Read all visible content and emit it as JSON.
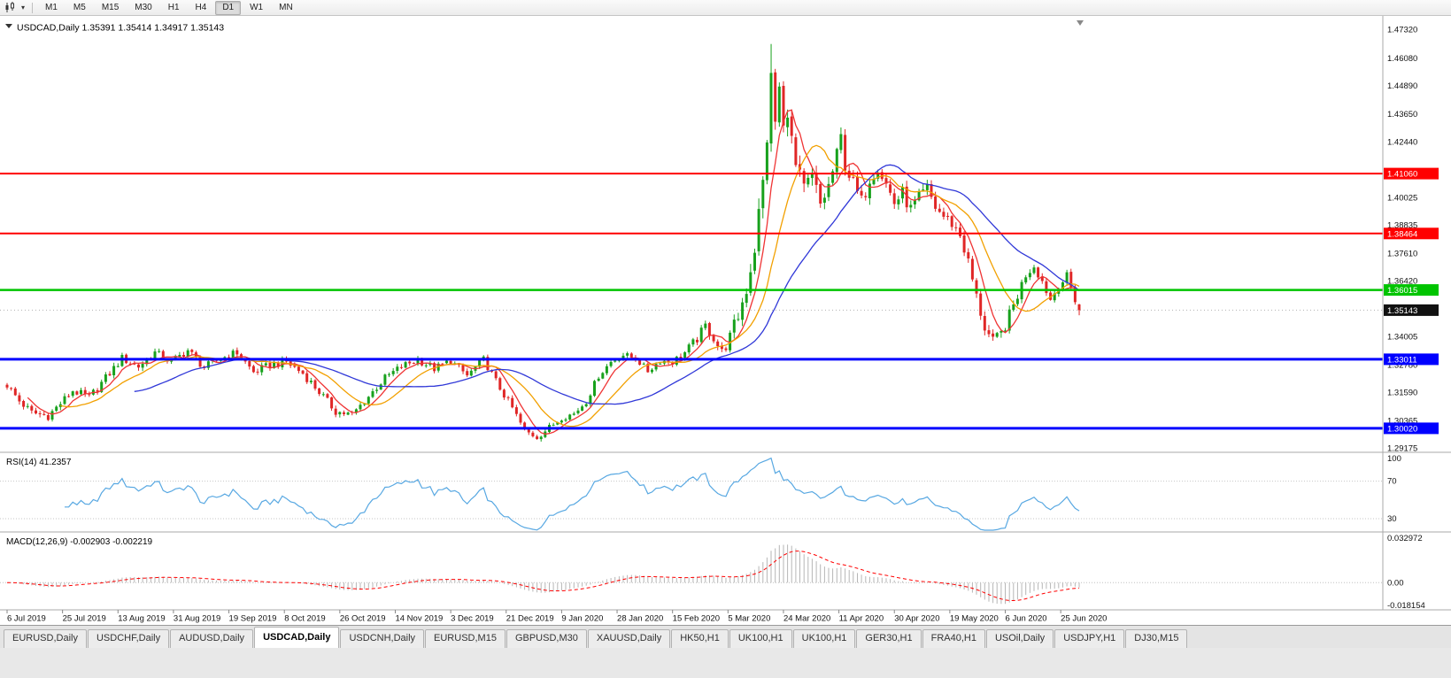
{
  "toolbar": {
    "chart_type_icon": "candlestick-chart",
    "timeframes": [
      "M1",
      "M5",
      "M15",
      "M30",
      "H1",
      "H4",
      "D1",
      "W1",
      "MN"
    ],
    "active_timeframe": "D1"
  },
  "chart": {
    "symbol": "USDCAD",
    "period": "Daily",
    "title_line": "USDCAD,Daily 1.35391 1.35414 1.34917 1.35143",
    "open": "1.35391",
    "high": "1.35414",
    "low": "1.34917",
    "close": "1.35143"
  },
  "price_axis": {
    "ticks": [
      "1.47320",
      "1.46080",
      "1.44890",
      "1.43650",
      "1.42440",
      "1.40025",
      "1.38835",
      "1.37610",
      "1.36420",
      "1.34005",
      "1.32780",
      "1.31590",
      "1.30365",
      "1.29175"
    ]
  },
  "hlines": [
    {
      "price": 1.4106,
      "label": "1.41060",
      "color": "#ff0000",
      "width": 2
    },
    {
      "price": 1.38464,
      "label": "1.38464",
      "color": "#ff0000",
      "width": 2
    },
    {
      "price": 1.36015,
      "label": "1.36015",
      "color": "#00c400",
      "width": 2.5
    },
    {
      "price": 1.33011,
      "label": "1.33011",
      "color": "#0000ff",
      "width": 3
    },
    {
      "price": 1.3002,
      "label": "1.30020",
      "color": "#0000ff",
      "width": 3
    }
  ],
  "current_price": {
    "value": 1.35143,
    "label": "1.35143",
    "badge_color": "#111111"
  },
  "time_axis": [
    "6 Jul 2019",
    "25 Jul 2019",
    "13 Aug 2019",
    "31 Aug 2019",
    "19 Sep 2019",
    "8 Oct 2019",
    "26 Oct 2019",
    "14 Nov 2019",
    "3 Dec 2019",
    "21 Dec 2019",
    "9 Jan 2020",
    "28 Jan 2020",
    "15 Feb 2020",
    "5 Mar 2020",
    "24 Mar 2020",
    "11 Apr 2020",
    "30 Apr 2020",
    "19 May 2020",
    "6 Jun 2020",
    "25 Jun 2020"
  ],
  "rsi": {
    "title": "RSI(14) 41.2357",
    "period": 14,
    "current": 41.2357,
    "axis_labels": [
      "100",
      "70",
      "30"
    ],
    "levels": [
      70,
      30
    ],
    "line_color": "#58a8e2"
  },
  "macd": {
    "title": "MACD(12,26,9) -0.002903 -0.002219",
    "fast": 12,
    "slow": 26,
    "signal": 9,
    "macd_value": -0.002903,
    "signal_value": -0.002219,
    "axis_labels": [
      "0.032972",
      "0.00",
      "-0.018154"
    ],
    "axis_max": 0.032972,
    "axis_min": -0.018154,
    "histogram_color": "#b6b6b6",
    "signal_color": "#ff0000"
  },
  "tabs": {
    "items": [
      "EURUSD,Daily",
      "USDCHF,Daily",
      "AUDUSD,Daily",
      "USDCAD,Daily",
      "USDCNH,Daily",
      "EURUSD,M15",
      "GBPUSD,M30",
      "XAUUSD,Daily",
      "HK50,H1",
      "UK100,H1",
      "UK100,H1",
      "GER30,H1",
      "FRA40,H1",
      "USOil,Daily",
      "USDJPY,H1",
      "DJ30,M15"
    ],
    "active_index": 3
  },
  "colors": {
    "candle_up": "#17a11c",
    "candle_down": "#e02626",
    "axis_text": "#111111",
    "panel_border": "#a8a8a8",
    "current_price_line": "#b0b0b0",
    "grid_levels": "#c6c6c6"
  },
  "chart_data": {
    "type": "candlestick",
    "symbol": "USDCAD",
    "timeframe": "D1",
    "visible_range": {
      "price_min": 1.2917,
      "price_max": 1.4774,
      "date_start": "6 Jul 2019",
      "date_end": "1 Jul 2020"
    },
    "candle_count": 262,
    "close_waypoints": [
      [
        0,
        1.319
      ],
      [
        3,
        1.312
      ],
      [
        6,
        1.307
      ],
      [
        10,
        1.3055
      ],
      [
        13,
        1.311
      ],
      [
        16,
        1.3165
      ],
      [
        20,
        1.3135
      ],
      [
        24,
        1.322
      ],
      [
        28,
        1.3305
      ],
      [
        32,
        1.327
      ],
      [
        36,
        1.333
      ],
      [
        40,
        1.329
      ],
      [
        44,
        1.334
      ],
      [
        48,
        1.3265
      ],
      [
        52,
        1.3305
      ],
      [
        56,
        1.333
      ],
      [
        60,
        1.3245
      ],
      [
        64,
        1.3275
      ],
      [
        68,
        1.329
      ],
      [
        72,
        1.324
      ],
      [
        76,
        1.316
      ],
      [
        80,
        1.3075
      ],
      [
        84,
        1.306
      ],
      [
        88,
        1.314
      ],
      [
        92,
        1.322
      ],
      [
        96,
        1.327
      ],
      [
        100,
        1.33
      ],
      [
        104,
        1.326
      ],
      [
        108,
        1.3295
      ],
      [
        112,
        1.323
      ],
      [
        116,
        1.33
      ],
      [
        120,
        1.3175
      ],
      [
        123,
        1.309
      ],
      [
        126,
        1.299
      ],
      [
        129,
        1.2965
      ],
      [
        132,
        1.3005
      ],
      [
        135,
        1.305
      ],
      [
        138,
        1.3065
      ],
      [
        141,
        1.312
      ],
      [
        144,
        1.323
      ],
      [
        147,
        1.329
      ],
      [
        150,
        1.332
      ],
      [
        153,
        1.3305
      ],
      [
        156,
        1.325
      ],
      [
        159,
        1.3295
      ],
      [
        162,
        1.329
      ],
      [
        165,
        1.333
      ],
      [
        168,
        1.339
      ],
      [
        170,
        1.3445
      ],
      [
        172,
        1.3395
      ],
      [
        174,
        1.333
      ],
      [
        176,
        1.3395
      ],
      [
        178,
        1.349
      ],
      [
        180,
        1.361
      ],
      [
        182,
        1.379
      ],
      [
        184,
        1.406
      ],
      [
        185,
        1.427
      ],
      [
        186,
        1.451
      ],
      [
        187,
        1.433
      ],
      [
        188,
        1.447
      ],
      [
        189,
        1.429
      ],
      [
        190,
        1.44
      ],
      [
        191,
        1.424
      ],
      [
        192,
        1.413
      ],
      [
        194,
        1.403
      ],
      [
        196,
        1.409
      ],
      [
        198,
        1.397
      ],
      [
        200,
        1.405
      ],
      [
        202,
        1.418
      ],
      [
        203,
        1.426
      ],
      [
        204,
        1.415
      ],
      [
        206,
        1.406
      ],
      [
        208,
        1.398
      ],
      [
        210,
        1.409
      ],
      [
        212,
        1.414
      ],
      [
        214,
        1.406
      ],
      [
        216,
        1.398
      ],
      [
        218,
        1.402
      ],
      [
        220,
        1.395
      ],
      [
        222,
        1.4
      ],
      [
        224,
        1.404
      ],
      [
        226,
        1.396
      ],
      [
        228,
        1.392
      ],
      [
        230,
        1.389
      ],
      [
        232,
        1.384
      ],
      [
        234,
        1.372
      ],
      [
        236,
        1.357
      ],
      [
        238,
        1.344
      ],
      [
        240,
        1.337
      ],
      [
        242,
        1.341
      ],
      [
        244,
        1.349
      ],
      [
        246,
        1.358
      ],
      [
        248,
        1.367
      ],
      [
        250,
        1.371
      ],
      [
        252,
        1.364
      ],
      [
        254,
        1.356
      ],
      [
        256,
        1.362
      ],
      [
        258,
        1.366
      ],
      [
        260,
        1.356
      ],
      [
        261,
        1.35143
      ]
    ],
    "volatility_waypoints": [
      [
        0,
        0.004
      ],
      [
        70,
        0.004
      ],
      [
        120,
        0.0035
      ],
      [
        160,
        0.0032
      ],
      [
        175,
        0.006
      ],
      [
        183,
        0.013
      ],
      [
        190,
        0.012
      ],
      [
        200,
        0.009
      ],
      [
        212,
        0.008
      ],
      [
        228,
        0.006
      ],
      [
        240,
        0.007
      ],
      [
        250,
        0.005
      ],
      [
        261,
        0.004
      ]
    ],
    "overrides": [
      {
        "i": 129,
        "l": 1.2952
      },
      {
        "i": 186,
        "h": 1.4668
      },
      {
        "i": 261,
        "o": 1.35391,
        "h": 1.35414,
        "l": 1.34917,
        "c": 1.35143
      }
    ],
    "moving_averages": [
      {
        "period": 6,
        "color": "#ef3434",
        "name": "fast-ma"
      },
      {
        "period": 14,
        "color": "#f2a000",
        "name": "medium-ma"
      },
      {
        "period": 32,
        "color": "#3038d8",
        "name": "slow-ma"
      }
    ],
    "key_levels": [
      1.4106,
      1.38464,
      1.36015,
      1.33011,
      1.3002
    ],
    "peak": {
      "date": "19 Mar 2020",
      "high": 1.4668
    },
    "last_candle": {
      "open": 1.35391,
      "high": 1.35414,
      "low": 1.34917,
      "close": 1.35143
    }
  }
}
